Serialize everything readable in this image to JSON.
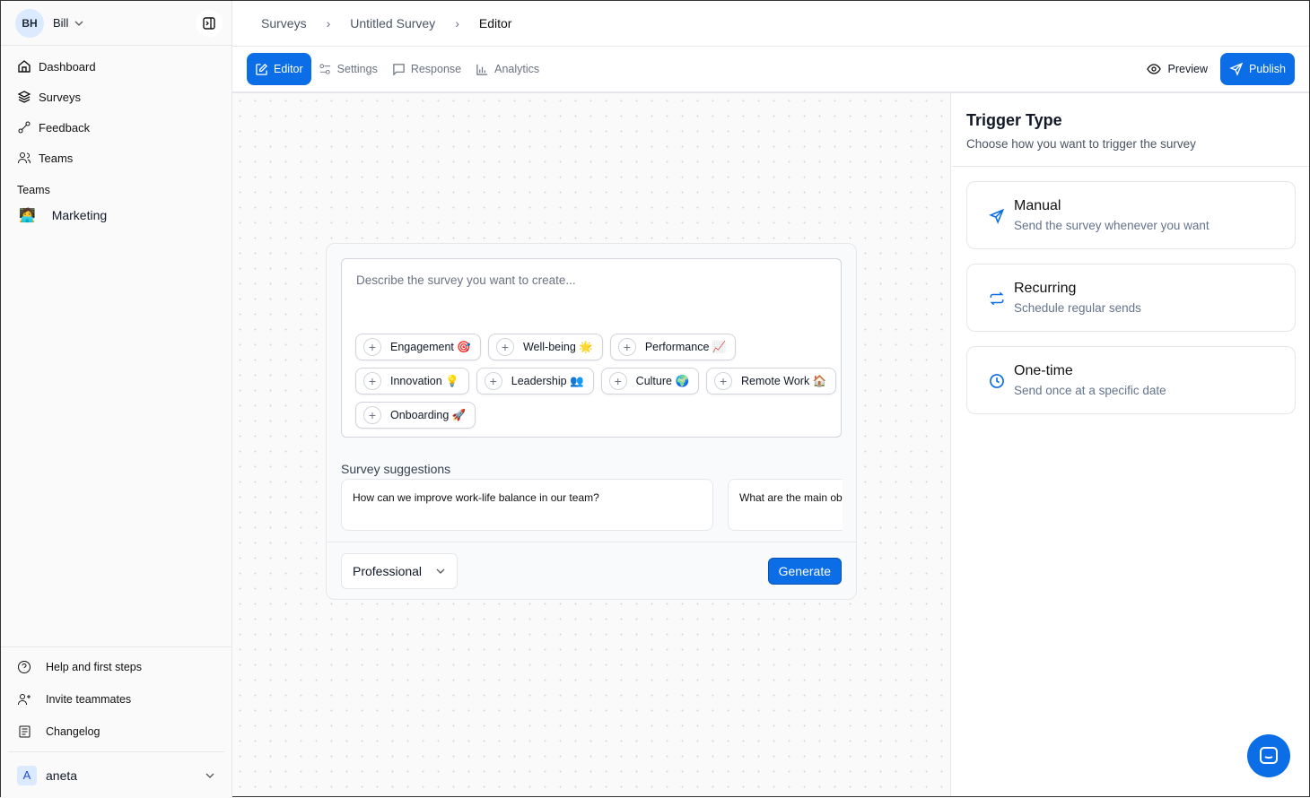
{
  "user": {
    "initials": "BH",
    "name": "Bill"
  },
  "sidebar": {
    "items": [
      {
        "label": "Dashboard",
        "icon": "home-icon"
      },
      {
        "label": "Surveys",
        "icon": "layers-icon"
      },
      {
        "label": "Feedback",
        "icon": "feedback-icon"
      },
      {
        "label": "Teams",
        "icon": "users-icon"
      }
    ],
    "teams_label": "Teams",
    "teams": [
      {
        "emoji": "🧑‍💻",
        "name": "Marketing"
      }
    ],
    "bottom": [
      {
        "label": "Help and first steps",
        "icon": "help-icon"
      },
      {
        "label": "Invite teammates",
        "icon": "user-plus-icon"
      },
      {
        "label": "Changelog",
        "icon": "changelog-icon"
      }
    ],
    "account": {
      "initial": "A",
      "name": "aneta"
    }
  },
  "breadcrumb": [
    "Surveys",
    "Untitled Survey",
    "Editor"
  ],
  "tabs": [
    {
      "label": "Editor",
      "active": true
    },
    {
      "label": "Settings"
    },
    {
      "label": "Response"
    },
    {
      "label": "Analytics"
    }
  ],
  "actions": {
    "preview": "Preview",
    "publish": "Publish"
  },
  "accent": "#0b6ee6",
  "editor": {
    "placeholder": "Describe the survey you want to create...",
    "chips": [
      {
        "label": "Engagement",
        "emoji": "🎯"
      },
      {
        "label": "Well-being",
        "emoji": "🌟"
      },
      {
        "label": "Performance",
        "emoji": "📈"
      },
      {
        "label": "Innovation",
        "emoji": "💡"
      },
      {
        "label": "Leadership",
        "emoji": "👥"
      },
      {
        "label": "Culture",
        "emoji": "🌍"
      },
      {
        "label": "Remote Work",
        "emoji": "🏠"
      },
      {
        "label": "Onboarding",
        "emoji": "🚀"
      }
    ],
    "suggestions_title": "Survey suggestions",
    "suggestions": [
      "How can we improve work-life balance in our team?",
      "What are the main ob"
    ],
    "tone": "Professional",
    "generate": "Generate"
  },
  "trigger": {
    "title": "Trigger Type",
    "subtitle": "Choose how you want to trigger the survey",
    "options": [
      {
        "title": "Manual",
        "desc": "Send the survey whenever you want",
        "icon": "send-icon"
      },
      {
        "title": "Recurring",
        "desc": "Schedule regular sends",
        "icon": "repeat-icon"
      },
      {
        "title": "One-time",
        "desc": "Send once at a specific date",
        "icon": "clock-icon"
      }
    ]
  }
}
